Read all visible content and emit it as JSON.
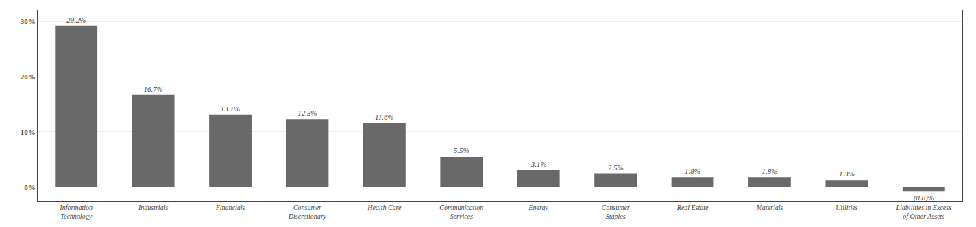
{
  "chart_data": {
    "type": "bar",
    "categories": [
      "Information\nTechnology",
      "Industrials",
      "Financials",
      "Consumer\nDiscretionary",
      "Health Care",
      "Communication\nServices",
      "Energy",
      "Consumer\nStaples",
      "Real Estate",
      "Materials",
      "Utilities",
      "Liabilities in Excess\nof Other Assets"
    ],
    "values": [
      29.2,
      16.7,
      13.1,
      12.3,
      11.6,
      5.5,
      3.1,
      2.5,
      1.8,
      1.8,
      1.3,
      -0.8
    ],
    "value_labels": [
      "29.2%",
      "16.7%",
      "13.1%",
      "12.3%",
      "11.6%",
      "5.5%",
      "3.1%",
      "2.5%",
      "1.8%",
      "1.8%",
      "1.3%",
      "(0.8)%"
    ],
    "data_labels": true,
    "color": "#696969",
    "ylim": [
      -2.5,
      32
    ],
    "yticks": [
      {
        "value": 0,
        "label": "0%"
      },
      {
        "value": 10,
        "label": "10%"
      },
      {
        "value": 20,
        "label": "20%"
      },
      {
        "value": 30,
        "label": "30%"
      }
    ],
    "grid": true
  }
}
